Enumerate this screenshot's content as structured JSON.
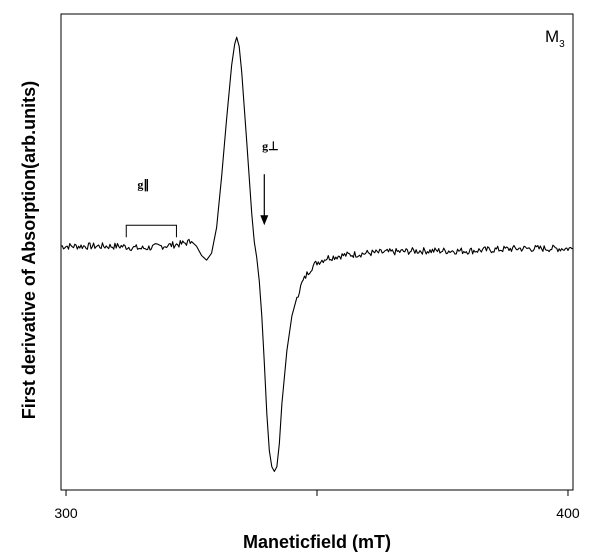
{
  "chart_data": {
    "type": "line",
    "title": "",
    "xlabel": "Maneticfield (mT)",
    "ylabel": "First derivative of Absorption(arb.units)",
    "xlim": [
      299,
      401
    ],
    "ylim": [
      -1.05,
      1.0
    ],
    "x_ticks": [
      300,
      350,
      400
    ],
    "x_tick_labels": [
      "300",
      "",
      "400"
    ],
    "grid": false,
    "sample_label": {
      "main": "M",
      "sub": "3"
    },
    "annotations": {
      "g_parallel": {
        "label": "g∥",
        "bracket_x": [
          312,
          322
        ],
        "y": 0.09
      },
      "g_perp": {
        "label": "g⊥",
        "arrow_x": 339.5,
        "y_top": 0.31,
        "y_bottom": 0.09
      }
    },
    "series": [
      {
        "x": [
          299,
          303,
          307,
          311,
          315,
          319,
          323,
          325,
          326,
          327,
          328,
          329,
          330,
          331,
          332,
          333,
          333.6,
          334,
          334.5,
          335,
          336,
          337,
          337.5,
          338,
          338.5,
          339,
          339.5,
          340,
          340.5,
          341,
          341.5,
          342,
          342.5,
          343,
          344,
          345,
          346,
          347,
          348,
          349,
          350,
          352,
          355,
          360,
          370,
          380,
          390,
          401
        ],
        "y": [
          0.0,
          0.0,
          0.0,
          0.0,
          -0.01,
          0.0,
          0.01,
          0.02,
          0.0,
          -0.04,
          -0.06,
          -0.03,
          0.08,
          0.3,
          0.55,
          0.78,
          0.87,
          0.9,
          0.86,
          0.75,
          0.45,
          0.14,
          0.02,
          -0.05,
          -0.15,
          -0.3,
          -0.5,
          -0.72,
          -0.88,
          -0.95,
          -0.97,
          -0.95,
          -0.85,
          -0.68,
          -0.45,
          -0.3,
          -0.22,
          -0.16,
          -0.12,
          -0.09,
          -0.07,
          -0.05,
          -0.04,
          -0.03,
          -0.02,
          -0.02,
          -0.01,
          -0.01
        ]
      }
    ]
  }
}
